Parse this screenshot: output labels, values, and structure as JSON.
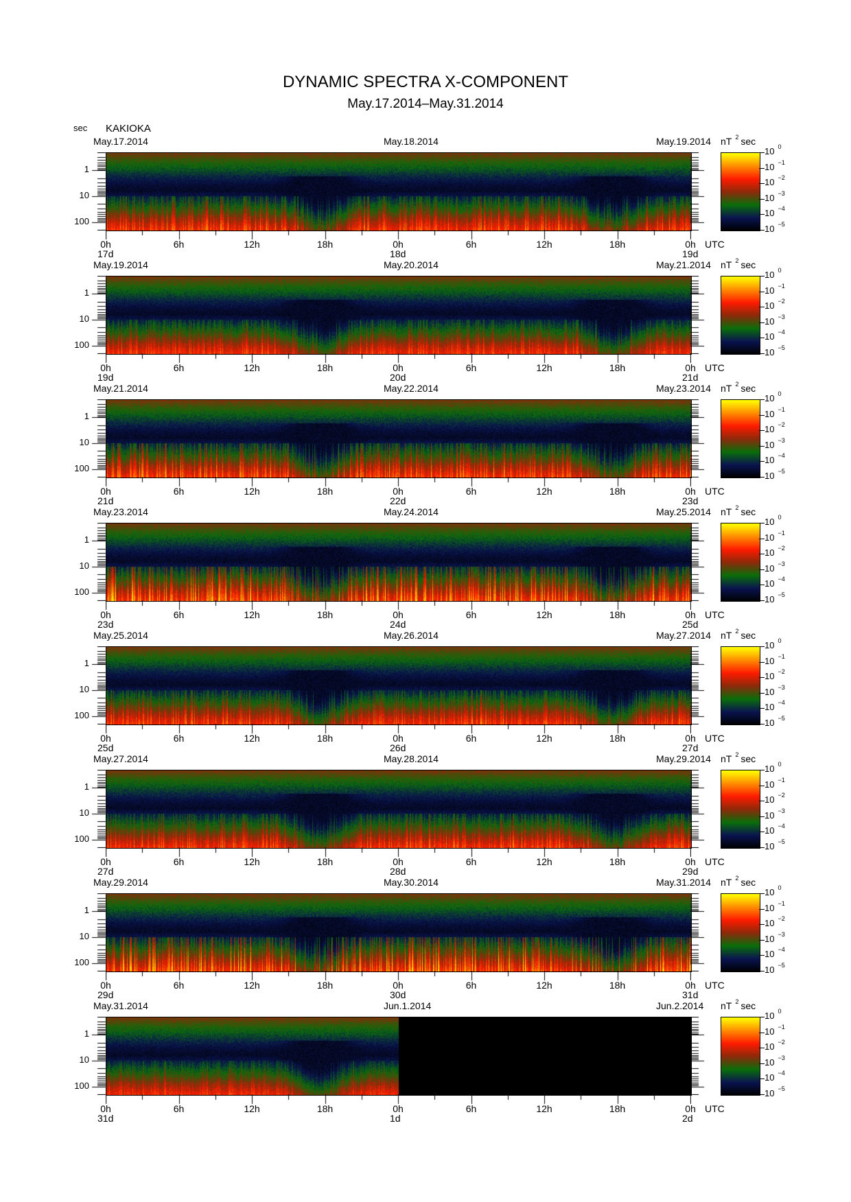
{
  "chart_data": {
    "type": "heatmap",
    "title": "DYNAMIC SPECTRA X-COMPONENT",
    "subtitle": "May.17.2014–May.31.2014",
    "ylabel": "sec",
    "station": "KAKIOKA",
    "y_ticks": [
      "1",
      "10",
      "100"
    ],
    "ylim_sec": [
      0.2,
      200
    ],
    "x_ticks": [
      "0h",
      "6h",
      "12h",
      "18h",
      "0h",
      "6h",
      "12h",
      "18h",
      "0h"
    ],
    "x_unit": "UTC",
    "colorbar": {
      "label": "nT",
      "label_sup": "2",
      "label_suffix": "sec",
      "ticks": [
        {
          "base": "10",
          "exp": "0"
        },
        {
          "base": "10",
          "exp": "−1"
        },
        {
          "base": "10",
          "exp": "−2"
        },
        {
          "base": "10",
          "exp": "−3"
        },
        {
          "base": "10",
          "exp": "−4"
        },
        {
          "base": "10",
          "exp": "−5"
        }
      ],
      "range_log10": [
        -5,
        0
      ],
      "colors": [
        "#000000",
        "#0a1450",
        "#0a6e0a",
        "#8c2a0a",
        "#ff1a00",
        "#ff8c00",
        "#ffff00"
      ]
    },
    "panels": [
      {
        "dates": [
          "May.17.2014",
          "May.18.2014",
          "May.19.2014"
        ],
        "days": [
          "17d",
          "18d",
          "19d"
        ],
        "activity": 0.5,
        "nodata_from": null
      },
      {
        "dates": [
          "May.19.2014",
          "May.20.2014",
          "May.21.2014"
        ],
        "days": [
          "19d",
          "20d",
          "21d"
        ],
        "activity": 0.4,
        "nodata_from": null
      },
      {
        "dates": [
          "May.21.2014",
          "May.22.2014",
          "May.23.2014"
        ],
        "days": [
          "21d",
          "22d",
          "23d"
        ],
        "activity": 0.6,
        "nodata_from": null
      },
      {
        "dates": [
          "May.23.2014",
          "May.24.2014",
          "May.25.2014"
        ],
        "days": [
          "23d",
          "24d",
          "25d"
        ],
        "activity": 0.8,
        "nodata_from": null
      },
      {
        "dates": [
          "May.25.2014",
          "May.26.2014",
          "May.27.2014"
        ],
        "days": [
          "25d",
          "26d",
          "27d"
        ],
        "activity": 0.45,
        "nodata_from": null
      },
      {
        "dates": [
          "May.27.2014",
          "May.28.2014",
          "May.29.2014"
        ],
        "days": [
          "27d",
          "28d",
          "29d"
        ],
        "activity": 0.45,
        "nodata_from": null
      },
      {
        "dates": [
          "May.29.2014",
          "May.30.2014",
          "May.31.2014"
        ],
        "days": [
          "29d",
          "30d",
          "31d"
        ],
        "activity": 0.85,
        "nodata_from": null
      },
      {
        "dates": [
          "May.31.2014",
          "Jun.1.2014",
          "Jun.2.2014"
        ],
        "days": [
          "31d",
          "1d",
          "2d"
        ],
        "activity": 0.3,
        "nodata_from": 24
      }
    ]
  }
}
